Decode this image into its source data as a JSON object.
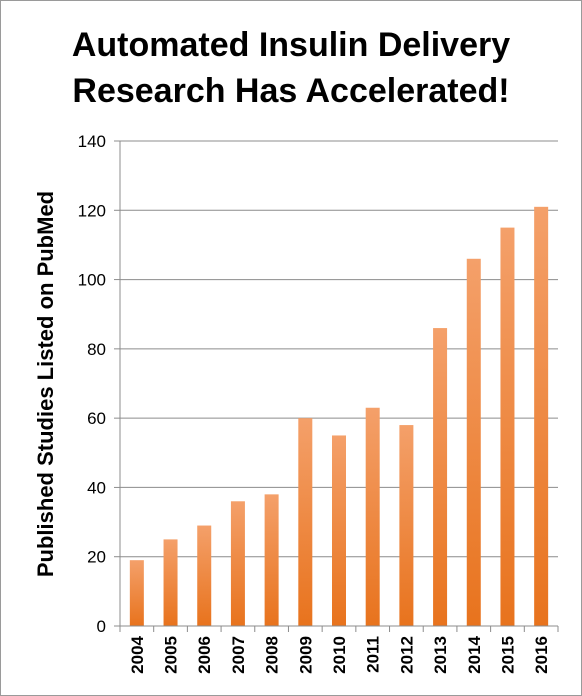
{
  "chart_data": {
    "type": "bar",
    "title_lines": [
      "Automated Insulin Delivery",
      "Research Has Accelerated!"
    ],
    "xlabel": "",
    "ylabel": "Published Studies Listed on PubMed",
    "categories": [
      "2004",
      "2005",
      "2006",
      "2007",
      "2008",
      "2009",
      "2010",
      "2011",
      "2012",
      "2013",
      "2014",
      "2015",
      "2016"
    ],
    "series": [
      {
        "values": [
          19,
          25,
          29,
          36,
          38,
          60,
          55,
          63,
          58,
          86,
          106,
          115,
          121
        ]
      }
    ],
    "ylim": [
      0,
      140
    ],
    "yticks": [
      "0",
      "20",
      "40",
      "60",
      "80",
      "100",
      "120",
      "140"
    ],
    "grid": true,
    "legend": "none",
    "colors": {
      "bar_top": "#f4a06a",
      "bar_bottom": "#e8731d",
      "grid": "#8c8c8c",
      "axis": "#8c8c8c"
    }
  }
}
